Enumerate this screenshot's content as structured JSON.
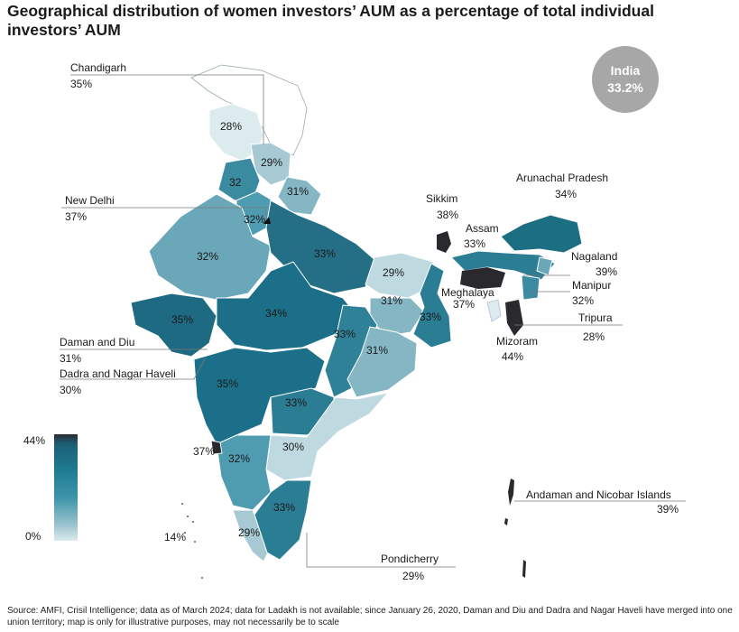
{
  "title": "Geographical distribution of women investors’ AUM as a percentage of total individual investors’ AUM",
  "national": {
    "label": "India",
    "value": "33.2%"
  },
  "legend": {
    "max": "44%",
    "min": "0%"
  },
  "colors": {
    "scale_dark": "#2b2b33",
    "scale_high": "#1c6e82",
    "scale_mid": "#3f95aa",
    "scale_low": "#9cc3cf",
    "scale_min": "#dceaee",
    "badge": "#a7a7a7"
  },
  "regions": {
    "chandigarh": {
      "name": "Chandigarh",
      "value": "35%"
    },
    "new_delhi": {
      "name": "New Delhi",
      "value": "37%"
    },
    "daman_diu": {
      "name": "Daman and Diu",
      "value": "31%"
    },
    "dadra": {
      "name": "Dadra and Nagar Haveli",
      "value": "30%"
    },
    "sikkim": {
      "name": "Sikkim",
      "value": "38%"
    },
    "assam": {
      "name": "Assam",
      "value": "33%"
    },
    "arunachal": {
      "name": "Arunachal Pradesh",
      "value": "34%"
    },
    "nagaland": {
      "name": "Nagaland",
      "value": "39%"
    },
    "meghalaya": {
      "name": "Meghalaya",
      "value": "37%"
    },
    "manipur": {
      "name": "Manipur",
      "value": "32%"
    },
    "tripura": {
      "name": "Tripura",
      "value": "28%"
    },
    "mizoram": {
      "name": "Mizoram",
      "value": "44%"
    },
    "andaman": {
      "name": "Andaman and Nicobar Islands",
      "value": "39%"
    },
    "pondicherry": {
      "name": "Pondicherry",
      "value": "29%"
    }
  },
  "map_values": {
    "jammu_kashmir": "28%",
    "himachal": "29%",
    "punjab": "32",
    "uttarakhand": "31%",
    "delhi_marker": "32%",
    "rajasthan": "32%",
    "uttar_pradesh": "33%",
    "bihar": "29%",
    "jharkhand": "31%",
    "west_bengal": "33%",
    "gujarat": "35%",
    "madhya_pradesh": "34%",
    "chhattisgarh": "33%",
    "odisha": "31%",
    "maharashtra": "35%",
    "telangana": "33%",
    "goa": "37%",
    "karnataka": "32%",
    "andhra_pradesh": "30%",
    "tamil_nadu": "33%",
    "kerala": "29%",
    "lakshadweep": "14%"
  },
  "source": "Source: AMFI, Crisil Intelligence; data as of March 2024; data for Ladakh is not available; since January 26, 2020, Daman and Diu and Dadra and Nagar Haveli have merged into one union territory; map is only for illustrative purposes, may not necessarily be to scale"
}
